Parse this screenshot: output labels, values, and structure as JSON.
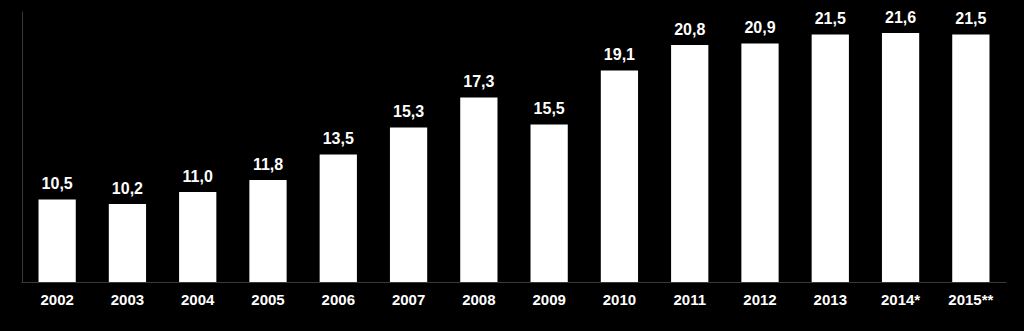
{
  "chart_data": {
    "type": "bar",
    "categories": [
      "2002",
      "2003",
      "2004",
      "2005",
      "2006",
      "2007",
      "2008",
      "2009",
      "2010",
      "2011",
      "2012",
      "2013",
      "2014*",
      "2015**"
    ],
    "values": [
      10.5,
      10.2,
      11.0,
      11.8,
      13.5,
      15.3,
      17.3,
      15.5,
      19.1,
      20.8,
      20.9,
      21.5,
      21.6,
      21.5
    ],
    "value_labels": [
      "10,5",
      "10,2",
      "11,0",
      "11,8",
      "13,5",
      "15,3",
      "17,3",
      "15,5",
      "19,1",
      "20,8",
      "20,9",
      "21,5",
      "21,6",
      "21,5"
    ],
    "color": "#ffffff",
    "ylim": [
      5,
      23
    ],
    "grid": false,
    "data_labels": true,
    "tick_labels": "x"
  }
}
